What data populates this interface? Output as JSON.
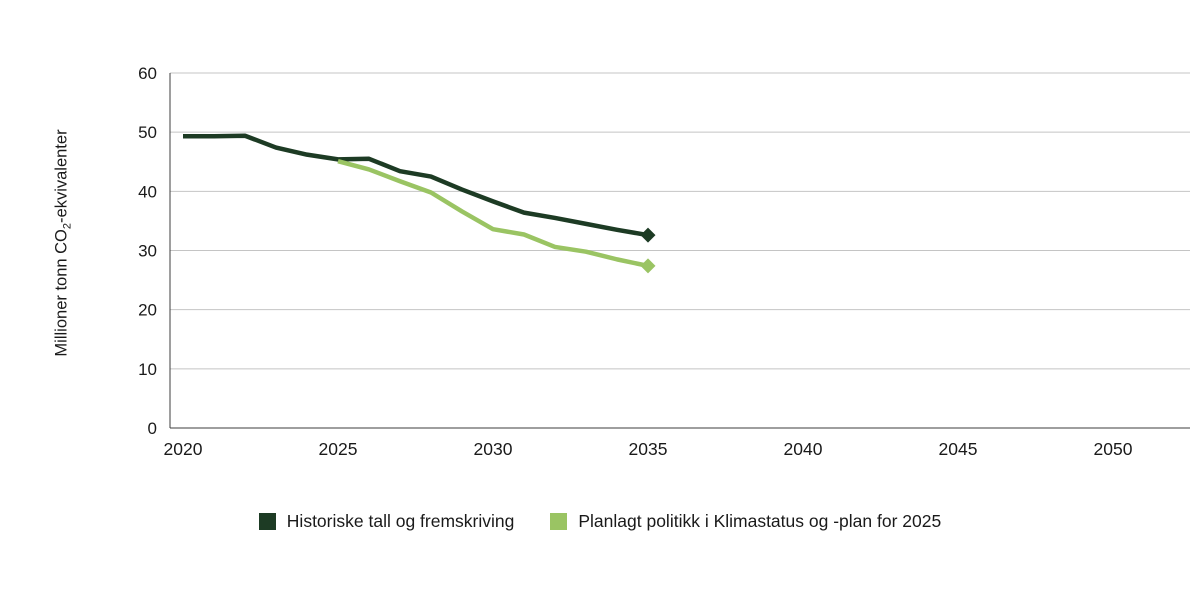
{
  "chart_data": {
    "type": "line",
    "title": "",
    "ylabel_pre": "Millioner tonn CO",
    "ylabel_sub": "2",
    "ylabel_post": "-ekvivalenter",
    "xlabel": "",
    "xlim": [
      2020,
      2050
    ],
    "ylim": [
      0,
      60
    ],
    "x_ticks": [
      2020,
      2025,
      2030,
      2035,
      2040,
      2045,
      2050
    ],
    "y_ticks": [
      0,
      10,
      20,
      30,
      40,
      50,
      60
    ],
    "grid": "horizontal",
    "legend_position": "bottom",
    "series": [
      {
        "name": "Historiske tall og fremskriving",
        "color": "#1d3b24",
        "end_marker": "diamond",
        "x": [
          2020,
          2021,
          2022,
          2023,
          2024,
          2025,
          2026,
          2027,
          2028,
          2029,
          2030,
          2031,
          2032,
          2033,
          2034,
          2035
        ],
        "values": [
          49.3,
          49.3,
          49.4,
          47.4,
          46.2,
          45.4,
          45.5,
          43.4,
          42.5,
          40.3,
          38.3,
          36.4,
          35.5,
          34.5,
          33.5,
          32.6
        ]
      },
      {
        "name": "Planlagt politikk i Klimastatus og -plan for 2025",
        "color": "#9ac463",
        "end_marker": "diamond",
        "x": [
          2025,
          2026,
          2027,
          2028,
          2029,
          2030,
          2031,
          2032,
          2033,
          2034,
          2035
        ],
        "values": [
          45.1,
          43.7,
          41.7,
          39.8,
          36.6,
          33.6,
          32.7,
          30.6,
          29.8,
          28.5,
          27.4
        ]
      }
    ]
  },
  "styles": {
    "background": "#ffffff",
    "grid_color": "#c4c4c4",
    "axis_color": "#3c3c3c",
    "text_color": "#1a1a1a"
  }
}
